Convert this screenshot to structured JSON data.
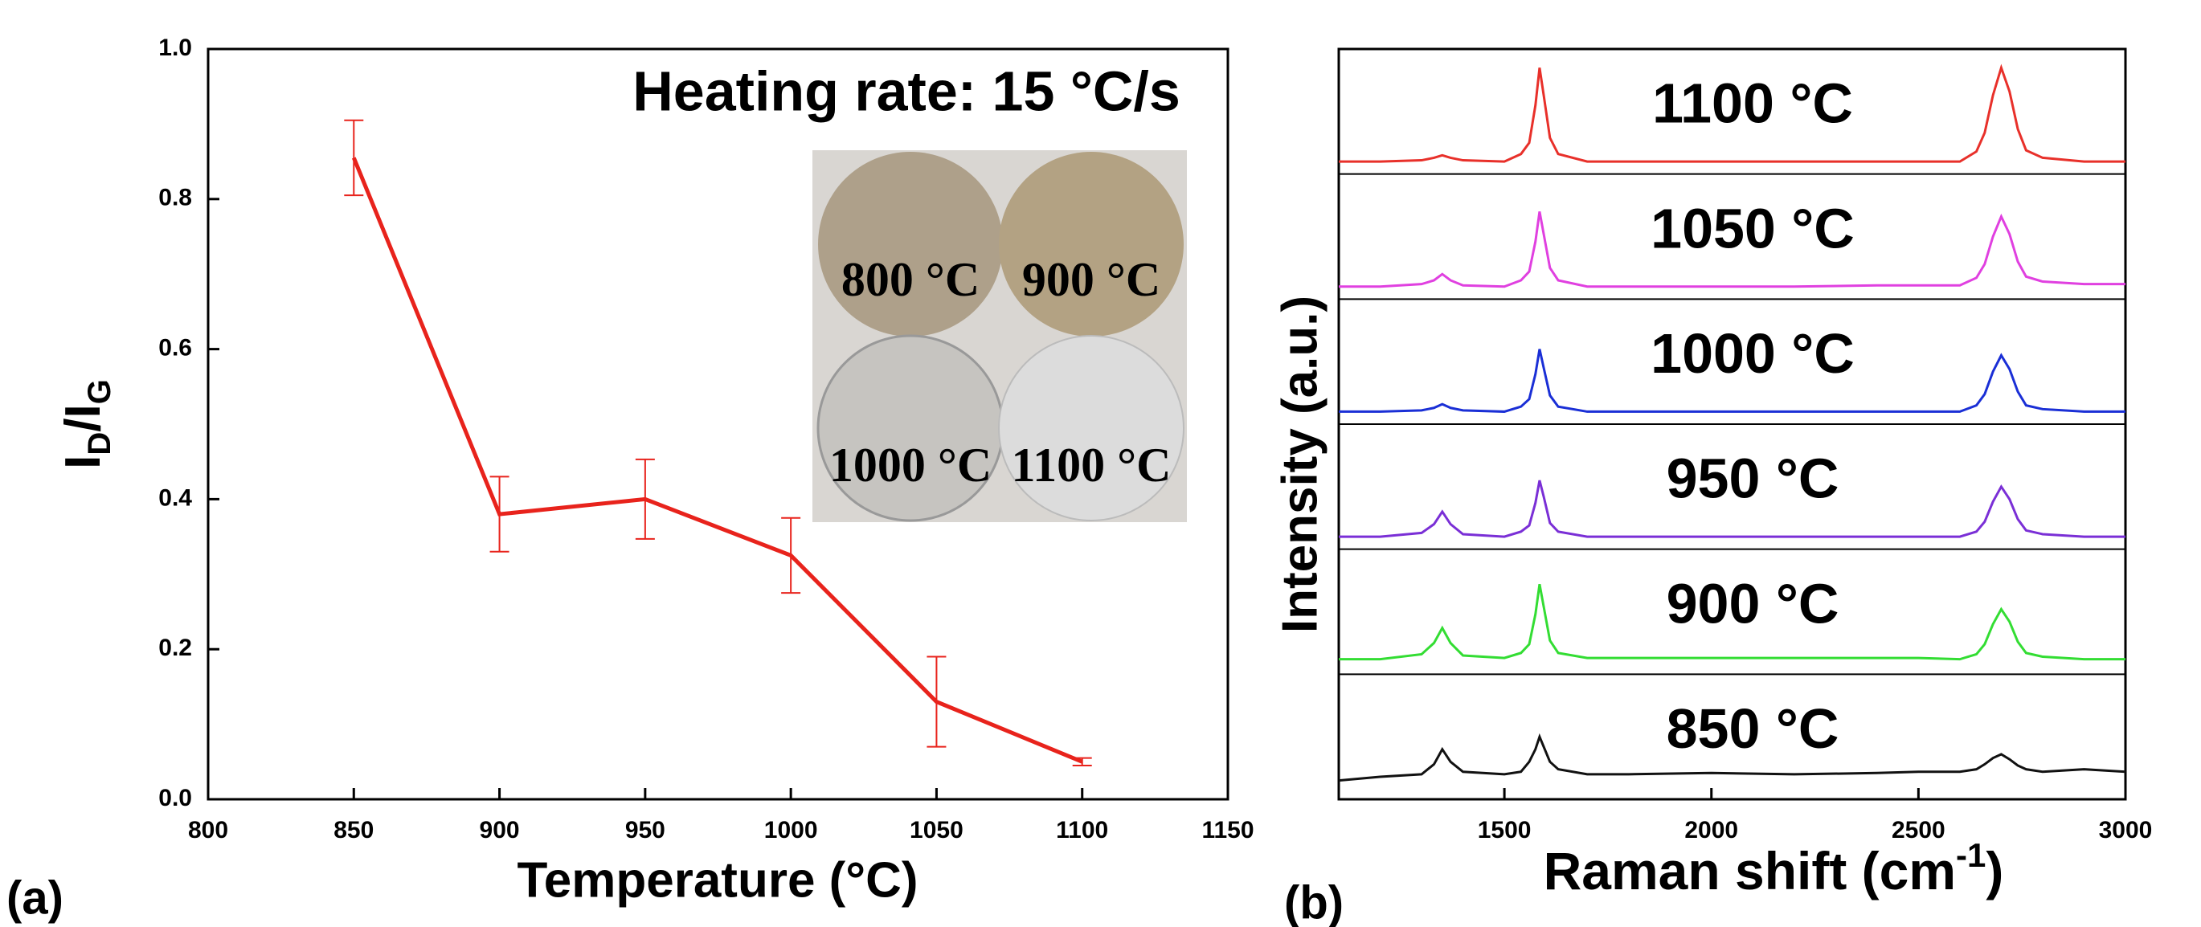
{
  "chart_data": [
    {
      "type": "line",
      "panel_label": "(a)",
      "annotation": "Heating rate: 15 °C/s",
      "xlabel": "Temperature (°C)",
      "ylabel_parts": [
        "I",
        "D",
        "/I",
        "G"
      ],
      "x": [
        850,
        900,
        950,
        1000,
        1050,
        1100
      ],
      "series": [
        {
          "color": "#e8231c",
          "values": [
            0.855,
            0.38,
            0.4,
            0.325,
            0.13,
            0.05
          ],
          "errors": [
            0.05,
            0.05,
            0.053,
            0.05,
            0.06,
            0.005
          ]
        }
      ],
      "xlim": [
        800,
        1150
      ],
      "xticks": [
        800,
        850,
        900,
        950,
        1000,
        1050,
        1100,
        1150
      ],
      "ylim": [
        0,
        1
      ],
      "yticks": [
        {
          "value": 0,
          "label": "0.0"
        },
        0.2,
        0.4,
        0.6,
        0.8,
        {
          "value": 1,
          "label": "1.0"
        }
      ],
      "inset": {
        "labels": [
          "800 °C",
          "900 °C",
          "1000 °C",
          "1100 °C"
        ]
      }
    },
    {
      "type": "spectra",
      "panel_label": "(b)",
      "xlabel_parts": [
        "Raman shift (cm",
        "-1",
        ")"
      ],
      "ylabel": "Intensity (a.u.)",
      "x": [
        1100,
        1200,
        1300,
        1330,
        1350,
        1370,
        1400,
        1500,
        1540,
        1560,
        1575,
        1585,
        1595,
        1610,
        1630,
        1700,
        1800,
        2000,
        2200,
        2400,
        2500,
        2600,
        2640,
        2660,
        2680,
        2700,
        2720,
        2740,
        2760,
        2800,
        2900,
        3000
      ],
      "xlim": [
        1100,
        3000
      ],
      "xticks": [
        1500,
        2000,
        2500,
        3000
      ],
      "ylim": [
        0,
        1
      ],
      "series": [
        {
          "name": "1100 °C",
          "color": "#e8302a",
          "values": [
            0.1,
            0.1,
            0.11,
            0.13,
            0.15,
            0.13,
            0.11,
            0.1,
            0.16,
            0.25,
            0.55,
            0.85,
            0.63,
            0.29,
            0.16,
            0.1,
            0.1,
            0.1,
            0.1,
            0.1,
            0.1,
            0.1,
            0.18,
            0.33,
            0.63,
            0.85,
            0.66,
            0.36,
            0.19,
            0.13,
            0.1,
            0.1
          ]
        },
        {
          "name": "1050 °C",
          "color": "#e040e0",
          "values": [
            0.1,
            0.1,
            0.12,
            0.15,
            0.2,
            0.15,
            0.11,
            0.1,
            0.15,
            0.22,
            0.46,
            0.7,
            0.52,
            0.25,
            0.15,
            0.1,
            0.1,
            0.1,
            0.1,
            0.11,
            0.11,
            0.11,
            0.17,
            0.28,
            0.5,
            0.66,
            0.52,
            0.3,
            0.18,
            0.14,
            0.12,
            0.12
          ]
        },
        {
          "name": "1000 °C",
          "color": "#1a2fd6",
          "values": [
            0.1,
            0.1,
            0.11,
            0.13,
            0.16,
            0.13,
            0.11,
            0.1,
            0.14,
            0.2,
            0.4,
            0.6,
            0.45,
            0.23,
            0.14,
            0.1,
            0.1,
            0.1,
            0.1,
            0.1,
            0.1,
            0.1,
            0.15,
            0.24,
            0.42,
            0.55,
            0.44,
            0.26,
            0.15,
            0.12,
            0.1,
            0.1
          ]
        },
        {
          "name": "950 °C",
          "color": "#7a2fd6",
          "values": [
            0.1,
            0.1,
            0.13,
            0.2,
            0.3,
            0.2,
            0.12,
            0.1,
            0.14,
            0.19,
            0.37,
            0.55,
            0.42,
            0.21,
            0.14,
            0.1,
            0.1,
            0.1,
            0.1,
            0.1,
            0.1,
            0.1,
            0.14,
            0.22,
            0.38,
            0.5,
            0.4,
            0.24,
            0.15,
            0.12,
            0.1,
            0.1
          ]
        },
        {
          "name": "900 °C",
          "color": "#33dd33",
          "values": [
            0.12,
            0.12,
            0.16,
            0.25,
            0.37,
            0.25,
            0.15,
            0.13,
            0.17,
            0.24,
            0.48,
            0.72,
            0.54,
            0.27,
            0.17,
            0.13,
            0.13,
            0.13,
            0.13,
            0.13,
            0.13,
            0.12,
            0.16,
            0.24,
            0.4,
            0.52,
            0.42,
            0.26,
            0.17,
            0.14,
            0.12,
            0.12
          ]
        },
        {
          "name": "850 °C",
          "color": "#111111",
          "values": [
            0.15,
            0.18,
            0.2,
            0.28,
            0.4,
            0.3,
            0.22,
            0.2,
            0.22,
            0.3,
            0.4,
            0.5,
            0.42,
            0.3,
            0.24,
            0.2,
            0.2,
            0.21,
            0.2,
            0.21,
            0.22,
            0.22,
            0.24,
            0.28,
            0.33,
            0.36,
            0.32,
            0.27,
            0.24,
            0.22,
            0.24,
            0.22
          ]
        }
      ]
    }
  ]
}
